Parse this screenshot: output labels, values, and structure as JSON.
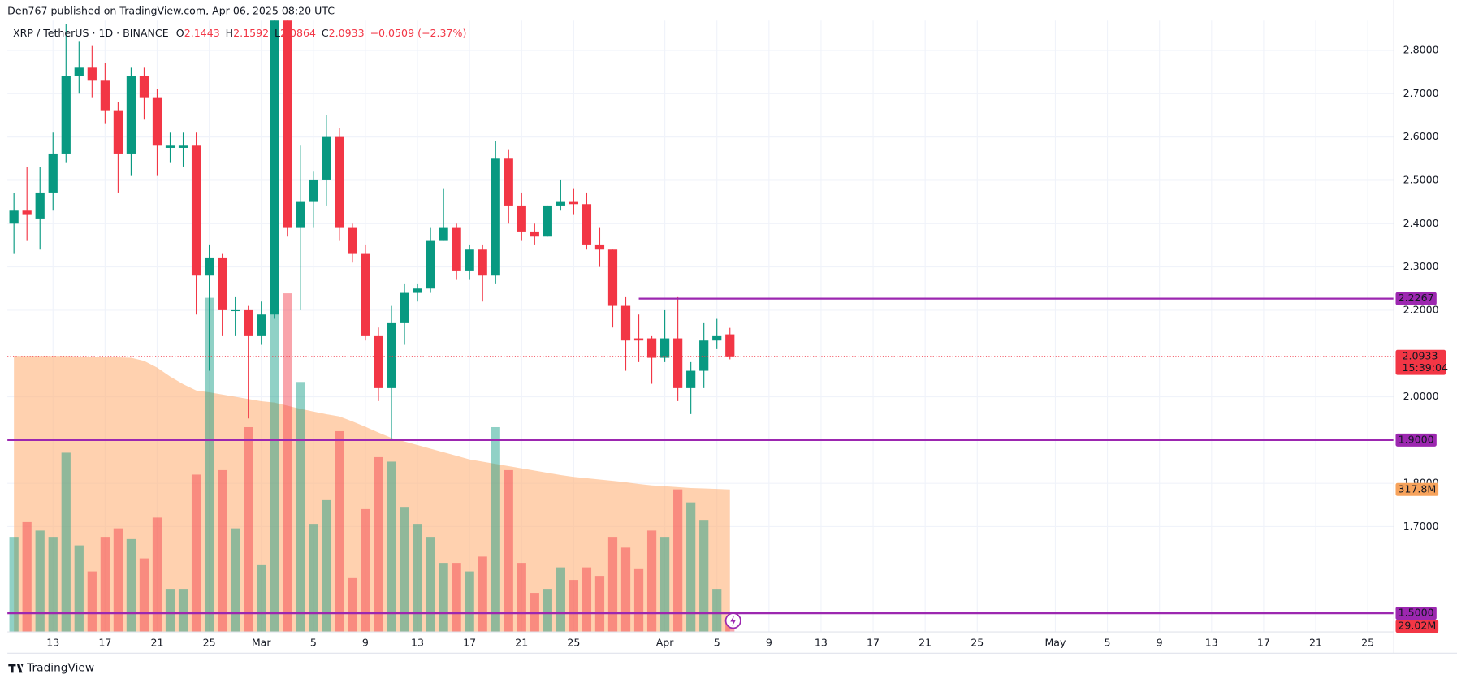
{
  "header": {
    "published": "Den767 published on TradingView.com, Apr 06, 2025 08:20 UTC",
    "symbol": "XRP / TetherUS · 1D · BINANCE",
    "o": "O",
    "h": "H",
    "l": "L",
    "c": "C",
    "change": "−0.0509 (−2.37%)"
  },
  "footer": {
    "brand": "TradingView"
  },
  "chart_data": {
    "type": "candlestick",
    "x": [
      0,
      1,
      2,
      3,
      4,
      5,
      6,
      7,
      8,
      9,
      10,
      11,
      12,
      13,
      14,
      15,
      16,
      17,
      18,
      19,
      20,
      21,
      22,
      23,
      24,
      25,
      26,
      27,
      28,
      29,
      30,
      31,
      32,
      33,
      34,
      35,
      36,
      37,
      38,
      39,
      40,
      41,
      42,
      43,
      44,
      45,
      46,
      47,
      48,
      49,
      50,
      51,
      52,
      53,
      54,
      55
    ],
    "open": [
      2.4,
      2.43,
      2.41,
      2.47,
      2.56,
      2.74,
      2.76,
      2.73,
      2.66,
      2.56,
      2.74,
      2.69,
      2.575,
      2.575,
      2.58,
      2.28,
      2.32,
      2.2,
      2.2,
      2.14,
      2.19,
      2.95,
      2.39,
      2.45,
      2.5,
      2.6,
      2.39,
      2.33,
      2.14,
      2.02,
      2.17,
      2.24,
      2.25,
      2.36,
      2.39,
      2.29,
      2.34,
      2.28,
      2.55,
      2.44,
      2.38,
      2.37,
      2.44,
      2.45,
      2.445,
      2.35,
      2.34,
      2.21,
      2.135,
      2.135,
      2.09,
      2.135,
      2.02,
      2.06,
      2.13,
      2.1443
    ],
    "high": [
      2.47,
      2.53,
      2.53,
      2.61,
      2.86,
      2.82,
      2.81,
      2.77,
      2.68,
      2.76,
      2.76,
      2.71,
      2.61,
      2.61,
      2.61,
      2.35,
      2.33,
      2.23,
      2.21,
      2.22,
      3.03,
      3.0,
      2.58,
      2.52,
      2.65,
      2.62,
      2.4,
      2.35,
      2.16,
      2.21,
      2.26,
      2.26,
      2.39,
      2.48,
      2.4,
      2.35,
      2.35,
      2.59,
      2.57,
      2.47,
      2.4,
      2.44,
      2.5,
      2.48,
      2.47,
      2.39,
      2.34,
      2.23,
      2.19,
      2.14,
      2.2,
      2.23,
      2.08,
      2.17,
      2.18,
      2.1592
    ],
    "low": [
      2.33,
      2.36,
      2.34,
      2.43,
      2.54,
      2.7,
      2.69,
      2.63,
      2.47,
      2.51,
      2.64,
      2.51,
      2.54,
      2.53,
      2.19,
      2.06,
      2.14,
      2.14,
      1.95,
      2.12,
      2.18,
      2.37,
      2.2,
      2.39,
      2.44,
      2.36,
      2.31,
      2.13,
      1.99,
      1.9,
      2.12,
      2.22,
      2.24,
      2.36,
      2.27,
      2.27,
      2.22,
      2.26,
      2.4,
      2.36,
      2.35,
      2.37,
      2.43,
      2.42,
      2.34,
      2.3,
      2.16,
      2.06,
      2.08,
      2.03,
      2.08,
      1.99,
      1.96,
      2.02,
      2.11,
      2.0864
    ],
    "close": [
      2.43,
      2.42,
      2.47,
      2.56,
      2.74,
      2.76,
      2.73,
      2.66,
      2.56,
      2.74,
      2.69,
      2.58,
      2.58,
      2.58,
      2.28,
      2.32,
      2.2,
      2.2,
      2.14,
      2.19,
      2.95,
      2.39,
      2.45,
      2.5,
      2.6,
      2.39,
      2.33,
      2.14,
      2.02,
      2.17,
      2.24,
      2.25,
      2.36,
      2.39,
      2.29,
      2.34,
      2.28,
      2.55,
      2.44,
      2.38,
      2.37,
      2.44,
      2.45,
      2.445,
      2.35,
      2.34,
      2.21,
      2.13,
      2.13,
      2.09,
      2.135,
      2.02,
      2.06,
      2.13,
      2.14,
      2.0933
    ],
    "volume": [
      212,
      245,
      226,
      212,
      400,
      193,
      135,
      212,
      231,
      207,
      164,
      255,
      96,
      96,
      351,
      746,
      361,
      231,
      457,
      149,
      794,
      756,
      558,
      241,
      294,
      448,
      120,
      274,
      390,
      380,
      279,
      241,
      212,
      154,
      154,
      135,
      168,
      457,
      361,
      154,
      87,
      96,
      144,
      116,
      144,
      125,
      212,
      188,
      140,
      226,
      212,
      318,
      289,
      250,
      96,
      29.02
    ],
    "volume_label": "29.02M",
    "volume_ma": [
      616,
      616,
      616,
      616,
      616,
      615,
      615,
      614,
      613,
      612,
      605,
      590,
      570,
      553,
      539,
      535,
      530,
      525,
      520,
      515,
      512,
      505,
      498,
      492,
      486,
      481,
      470,
      458,
      445,
      433,
      425,
      417,
      409,
      401,
      393,
      385,
      380,
      375,
      370,
      365,
      360,
      355,
      350,
      346,
      343,
      340,
      337,
      334,
      330,
      327,
      325,
      323,
      321,
      320,
      319,
      317.8
    ],
    "volume_ma_label": "317.8M",
    "vlim": [
      0,
      1365
    ],
    "up_color": "#089981",
    "down_color": "#f23645",
    "level_color": "#9c27b0",
    "ma_color": "#ffb27a",
    "countdown": "15:39:04",
    "levels": [
      {
        "value": 2.2267,
        "label": "2.2267",
        "from": 48
      },
      {
        "value": 1.9,
        "label": "1.9000",
        "from": -0.5
      },
      {
        "value": 1.5,
        "label": "1.5000",
        "from": -0.5
      }
    ],
    "ylim": [
      1.457,
      2.869
    ],
    "yticks": [
      {
        "value": 2.8,
        "label": "2.8000"
      },
      {
        "value": 2.7,
        "label": "2.7000"
      },
      {
        "value": 2.6,
        "label": "2.6000"
      },
      {
        "value": 2.5,
        "label": "2.5000"
      },
      {
        "value": 2.4,
        "label": "2.4000"
      },
      {
        "value": 2.3,
        "label": "2.3000"
      },
      {
        "value": 2.2,
        "label": "2.2000"
      },
      {
        "value": 2.0,
        "label": "2.0000"
      },
      {
        "value": 1.8,
        "label": "1.8000"
      },
      {
        "value": 1.7,
        "label": "1.7000"
      }
    ],
    "xlim": [
      -0.5,
      106
    ],
    "xticks": [
      {
        "value": 3,
        "label": "13"
      },
      {
        "value": 7,
        "label": "17"
      },
      {
        "value": 11,
        "label": "21"
      },
      {
        "value": 15,
        "label": "25"
      },
      {
        "value": 19,
        "label": "Mar"
      },
      {
        "value": 23,
        "label": "5"
      },
      {
        "value": 27,
        "label": "9"
      },
      {
        "value": 31,
        "label": "13"
      },
      {
        "value": 35,
        "label": "17"
      },
      {
        "value": 39,
        "label": "21"
      },
      {
        "value": 43,
        "label": "25"
      },
      {
        "value": 50,
        "label": "Apr"
      },
      {
        "value": 54,
        "label": "5"
      },
      {
        "value": 58,
        "label": "9"
      },
      {
        "value": 62,
        "label": "13"
      },
      {
        "value": 66,
        "label": "17"
      },
      {
        "value": 70,
        "label": "21"
      },
      {
        "value": 74,
        "label": "25"
      },
      {
        "value": 80,
        "label": "May"
      },
      {
        "value": 84,
        "label": "5"
      },
      {
        "value": 88,
        "label": "9"
      },
      {
        "value": 92,
        "label": "13"
      },
      {
        "value": 96,
        "label": "17"
      },
      {
        "value": 100,
        "label": "21"
      },
      {
        "value": 104,
        "label": "25"
      }
    ],
    "grid": true
  }
}
